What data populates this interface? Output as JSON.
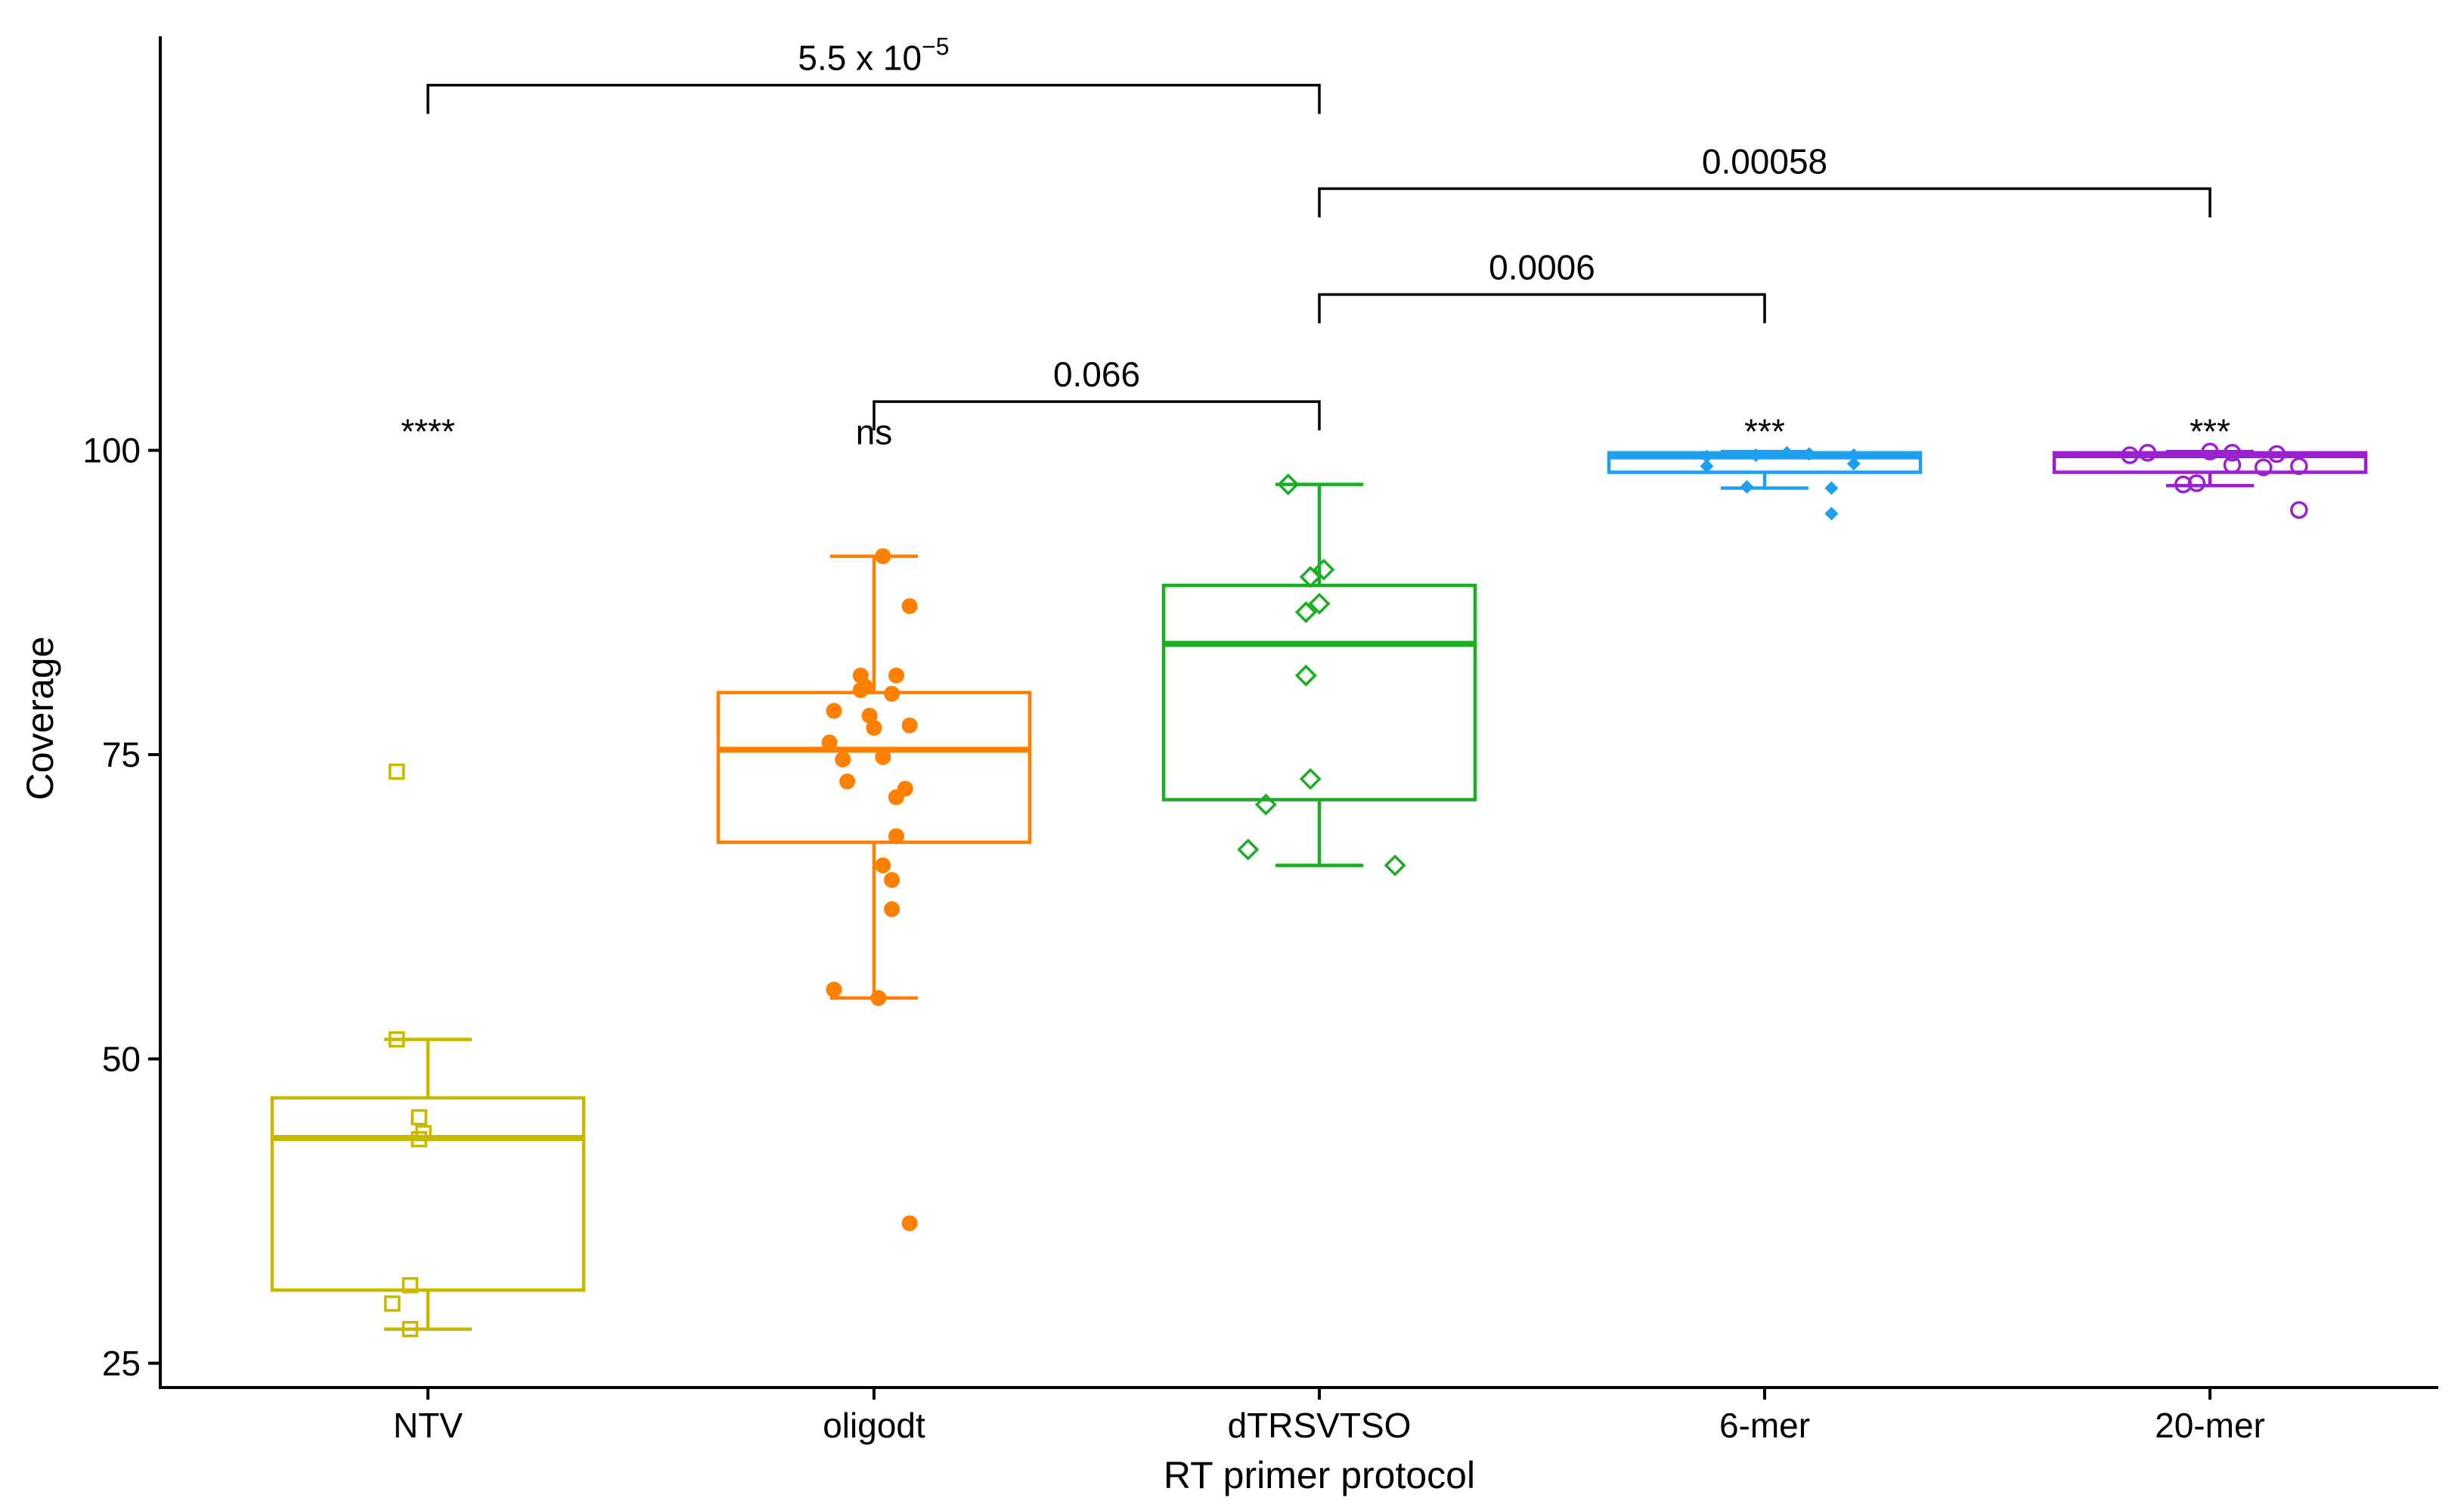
{
  "chart_data": {
    "type": "boxplot",
    "title": "",
    "xlabel": "RT primer protocol",
    "ylabel": "Coverage",
    "ylim": [
      23,
      137
    ],
    "yticks": [
      25,
      50,
      75,
      100
    ],
    "categories": [
      "NTV",
      "oligodt",
      "dTRSVTSO",
      "6-mer",
      "20-mer"
    ],
    "series": [
      {
        "name": "NTV",
        "color": "#c7b800",
        "marker": "square-open",
        "stats": {
          "min": 27.8,
          "q1": 31.0,
          "median": 43.5,
          "q3": 46.8,
          "max": 51.6
        },
        "points": [
          {
            "x": -0.07,
            "y": 73.6
          },
          {
            "x": -0.07,
            "y": 51.6
          },
          {
            "x": -0.02,
            "y": 45.2
          },
          {
            "x": -0.01,
            "y": 43.9
          },
          {
            "x": -0.02,
            "y": 43.4
          },
          {
            "x": -0.04,
            "y": 31.4
          },
          {
            "x": -0.08,
            "y": 29.9
          },
          {
            "x": -0.04,
            "y": 27.8
          }
        ],
        "sig": "****"
      },
      {
        "name": "oligodt",
        "color": "#ff7f00",
        "marker": "circle-filled",
        "stats": {
          "min": 55.0,
          "q1": 67.8,
          "median": 75.4,
          "q3": 80.1,
          "max": 91.3
        },
        "points": [
          {
            "x": 0.02,
            "y": 91.3
          },
          {
            "x": 0.08,
            "y": 87.2
          },
          {
            "x": -0.03,
            "y": 81.5
          },
          {
            "x": 0.05,
            "y": 81.5
          },
          {
            "x": -0.02,
            "y": 80.6
          },
          {
            "x": -0.03,
            "y": 80.3
          },
          {
            "x": 0.04,
            "y": 80.0
          },
          {
            "x": -0.09,
            "y": 78.6
          },
          {
            "x": -0.01,
            "y": 78.2
          },
          {
            "x": 0.08,
            "y": 77.4
          },
          {
            "x": 0.0,
            "y": 77.2
          },
          {
            "x": -0.1,
            "y": 76.0
          },
          {
            "x": -0.07,
            "y": 74.6
          },
          {
            "x": 0.02,
            "y": 74.8
          },
          {
            "x": -0.06,
            "y": 72.8
          },
          {
            "x": 0.07,
            "y": 72.2
          },
          {
            "x": 0.05,
            "y": 71.5
          },
          {
            "x": 0.05,
            "y": 68.3
          },
          {
            "x": 0.02,
            "y": 65.9
          },
          {
            "x": 0.04,
            "y": 64.7
          },
          {
            "x": 0.04,
            "y": 62.3
          },
          {
            "x": -0.09,
            "y": 55.7
          },
          {
            "x": 0.01,
            "y": 55.0
          },
          {
            "x": 0.08,
            "y": 36.5
          }
        ],
        "sig": "ns"
      },
      {
        "name": "dTRSVTSO",
        "color": "#1aae24",
        "marker": "diamond-open",
        "stats": {
          "min": 65.9,
          "q1": 71.3,
          "median": 84.1,
          "q3": 88.9,
          "max": 97.2
        },
        "points": [
          {
            "x": -0.07,
            "y": 97.2
          },
          {
            "x": 0.01,
            "y": 90.2
          },
          {
            "x": -0.02,
            "y": 89.6
          },
          {
            "x": 0.0,
            "y": 87.4
          },
          {
            "x": -0.03,
            "y": 86.7
          },
          {
            "x": -0.03,
            "y": 81.5
          },
          {
            "x": -0.02,
            "y": 73.0
          },
          {
            "x": -0.12,
            "y": 70.9
          },
          {
            "x": -0.16,
            "y": 67.2
          },
          {
            "x": 0.17,
            "y": 65.9
          }
        ]
      },
      {
        "name": "6-mer",
        "color": "#1ea0f0",
        "marker": "diamond-filled",
        "stats": {
          "min": 96.9,
          "q1": 98.2,
          "median": 99.5,
          "q3": 99.8,
          "max": 99.9
        },
        "points": [
          {
            "x": -0.13,
            "y": 98.7
          },
          {
            "x": -0.13,
            "y": 99.5
          },
          {
            "x": -0.02,
            "y": 99.6
          },
          {
            "x": 0.05,
            "y": 99.8
          },
          {
            "x": 0.1,
            "y": 99.7
          },
          {
            "x": 0.2,
            "y": 99.6
          },
          {
            "x": 0.2,
            "y": 98.9
          },
          {
            "x": 0.15,
            "y": 96.9
          },
          {
            "x": -0.04,
            "y": 97.0
          },
          {
            "x": 0.15,
            "y": 94.8
          }
        ],
        "sig": "***"
      },
      {
        "name": "20-mer",
        "color": "#9a20d0",
        "marker": "circle-open",
        "stats": {
          "min": 97.1,
          "q1": 98.2,
          "median": 99.6,
          "q3": 99.8,
          "max": 99.9
        },
        "points": [
          {
            "x": -0.18,
            "y": 99.6
          },
          {
            "x": -0.14,
            "y": 99.8
          },
          {
            "x": 0.0,
            "y": 99.9
          },
          {
            "x": 0.05,
            "y": 99.8
          },
          {
            "x": 0.15,
            "y": 99.7
          },
          {
            "x": 0.05,
            "y": 98.8
          },
          {
            "x": 0.12,
            "y": 98.6
          },
          {
            "x": 0.2,
            "y": 98.7
          },
          {
            "x": -0.03,
            "y": 97.3
          },
          {
            "x": -0.06,
            "y": 97.2
          },
          {
            "x": 0.2,
            "y": 95.1
          }
        ],
        "sig": "***"
      }
    ],
    "comparisons": [
      {
        "from": 0,
        "to": 2,
        "y": 130.0,
        "label_main": "5.5 x 10",
        "label_sup": "−5"
      },
      {
        "from": 2,
        "to": 4,
        "y": 121.5,
        "label_main": "0.00058",
        "label_sup": ""
      },
      {
        "from": 2,
        "to": 3,
        "y": 112.8,
        "label_main": "0.0006",
        "label_sup": ""
      },
      {
        "from": 1,
        "to": 2,
        "y": 104.0,
        "label_main": "0.066",
        "label_sup": ""
      }
    ]
  }
}
